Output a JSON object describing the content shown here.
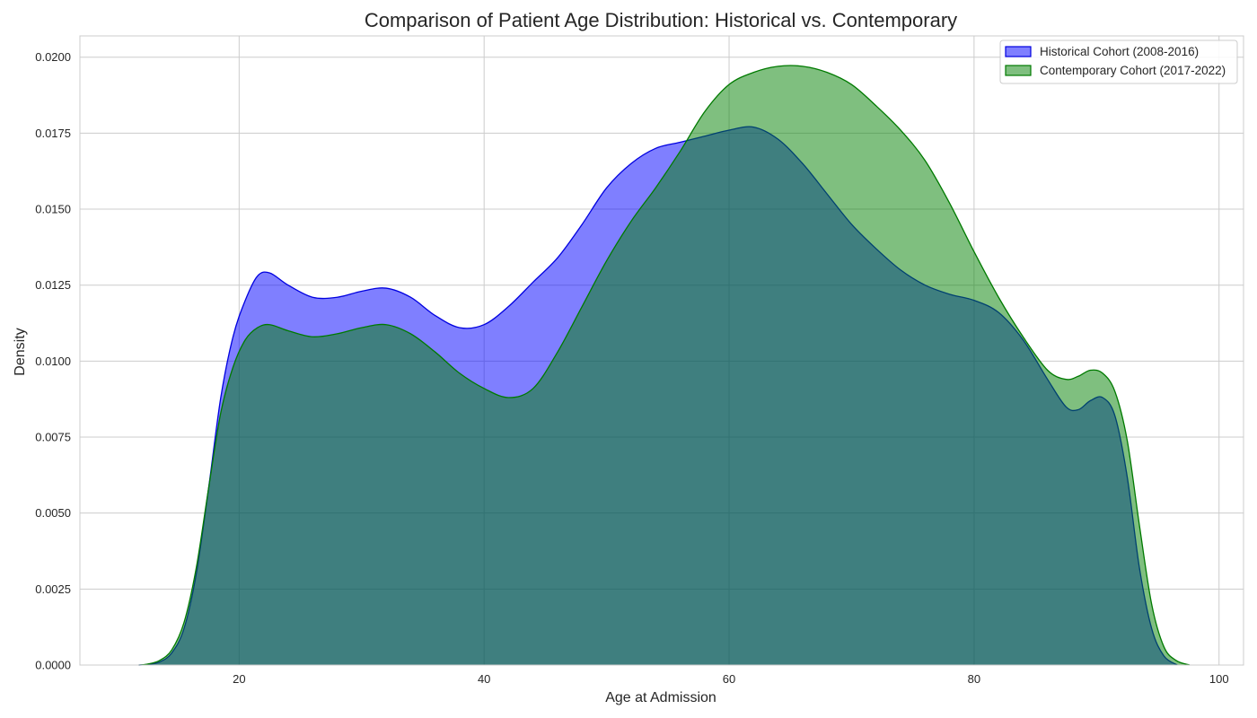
{
  "chart_data": {
    "type": "area",
    "title": "Comparison of Patient Age Distribution: Historical vs. Contemporary",
    "xlabel": "Age at Admission",
    "ylabel": "Density",
    "xlim": [
      7,
      102
    ],
    "ylim": [
      0,
      0.0207
    ],
    "x_ticks": [
      20,
      40,
      60,
      80,
      100
    ],
    "x_tick_labels": [
      "20",
      "40",
      "60",
      "80",
      "100"
    ],
    "y_ticks": [
      0,
      0.0025,
      0.005,
      0.0075,
      0.01,
      0.0125,
      0.015,
      0.0175,
      0.02
    ],
    "y_tick_labels": [
      "0.0000",
      "0.0025",
      "0.0050",
      "0.0075",
      "0.0100",
      "0.0125",
      "0.0150",
      "0.0175",
      "0.0200"
    ],
    "grid": true,
    "legend_position": "top-right",
    "series": [
      {
        "name": "Historical Cohort (2008-2016)",
        "fill_color": "#0000ff",
        "line_color": "#0000e0",
        "fill_opacity": 0.5,
        "points": [
          [
            11.8,
            0
          ],
          [
            12.5,
            2e-05
          ],
          [
            13.5,
            0.0001
          ],
          [
            14.5,
            0.0004
          ],
          [
            15.5,
            0.0012
          ],
          [
            16.5,
            0.003
          ],
          [
            17.5,
            0.0058
          ],
          [
            18.5,
            0.0088
          ],
          [
            19.5,
            0.0108
          ],
          [
            20.5,
            0.012
          ],
          [
            21.5,
            0.0128
          ],
          [
            22.5,
            0.0129
          ],
          [
            24,
            0.0125
          ],
          [
            26,
            0.0121
          ],
          [
            28,
            0.0121
          ],
          [
            30,
            0.0123
          ],
          [
            32,
            0.0124
          ],
          [
            34,
            0.0121
          ],
          [
            36,
            0.0115
          ],
          [
            38,
            0.0111
          ],
          [
            40,
            0.0112
          ],
          [
            42,
            0.0118
          ],
          [
            44,
            0.0126
          ],
          [
            46,
            0.0134
          ],
          [
            48,
            0.0145
          ],
          [
            50,
            0.0157
          ],
          [
            52,
            0.0165
          ],
          [
            54,
            0.017
          ],
          [
            56,
            0.0172
          ],
          [
            58,
            0.0174
          ],
          [
            60,
            0.0176
          ],
          [
            62,
            0.0177
          ],
          [
            64,
            0.0173
          ],
          [
            66,
            0.0165
          ],
          [
            68,
            0.0155
          ],
          [
            70,
            0.0145
          ],
          [
            72,
            0.0137
          ],
          [
            74,
            0.013
          ],
          [
            76,
            0.0125
          ],
          [
            78,
            0.0122
          ],
          [
            80,
            0.012
          ],
          [
            82,
            0.0116
          ],
          [
            84,
            0.0107
          ],
          [
            86,
            0.0094
          ],
          [
            87.5,
            0.0085
          ],
          [
            88.5,
            0.0084
          ],
          [
            89.5,
            0.0087
          ],
          [
            90.5,
            0.0088
          ],
          [
            91.5,
            0.0082
          ],
          [
            92.5,
            0.0062
          ],
          [
            93.5,
            0.0032
          ],
          [
            94.5,
            0.0012
          ],
          [
            95.5,
            0.0003
          ],
          [
            96.6,
            0
          ]
        ]
      },
      {
        "name": "Contemporary Cohort (2017-2022)",
        "fill_color": "#008000",
        "line_color": "#007a00",
        "fill_opacity": 0.5,
        "points": [
          [
            11.8,
            0
          ],
          [
            12.5,
            3e-05
          ],
          [
            13.5,
            0.00015
          ],
          [
            14.5,
            0.0005
          ],
          [
            15.5,
            0.0014
          ],
          [
            16.5,
            0.0032
          ],
          [
            17.5,
            0.0058
          ],
          [
            18.5,
            0.0083
          ],
          [
            19.5,
            0.0098
          ],
          [
            20.5,
            0.0107
          ],
          [
            21.5,
            0.0111
          ],
          [
            22.5,
            0.0112
          ],
          [
            24,
            0.011
          ],
          [
            26,
            0.0108
          ],
          [
            28,
            0.0109
          ],
          [
            30,
            0.0111
          ],
          [
            32,
            0.0112
          ],
          [
            34,
            0.0109
          ],
          [
            36,
            0.0103
          ],
          [
            38,
            0.0096
          ],
          [
            40,
            0.0091
          ],
          [
            42,
            0.0088
          ],
          [
            44,
            0.0091
          ],
          [
            46,
            0.0103
          ],
          [
            48,
            0.0118
          ],
          [
            50,
            0.0133
          ],
          [
            52,
            0.0146
          ],
          [
            54,
            0.0157
          ],
          [
            56,
            0.0169
          ],
          [
            58,
            0.0182
          ],
          [
            60,
            0.0191
          ],
          [
            62,
            0.0195
          ],
          [
            64,
            0.0197
          ],
          [
            66,
            0.0197
          ],
          [
            68,
            0.0195
          ],
          [
            70,
            0.0191
          ],
          [
            72,
            0.0184
          ],
          [
            74,
            0.0176
          ],
          [
            76,
            0.0166
          ],
          [
            78,
            0.0152
          ],
          [
            80,
            0.0136
          ],
          [
            82,
            0.0121
          ],
          [
            84,
            0.0108
          ],
          [
            86,
            0.0097
          ],
          [
            87.5,
            0.0094
          ],
          [
            88.5,
            0.0095
          ],
          [
            89.5,
            0.0097
          ],
          [
            90.5,
            0.0096
          ],
          [
            91.5,
            0.009
          ],
          [
            92.5,
            0.0074
          ],
          [
            93.5,
            0.0046
          ],
          [
            94.5,
            0.002
          ],
          [
            95.5,
            0.0006
          ],
          [
            96.5,
            0.00015
          ],
          [
            97.6,
            0
          ]
        ]
      }
    ]
  }
}
